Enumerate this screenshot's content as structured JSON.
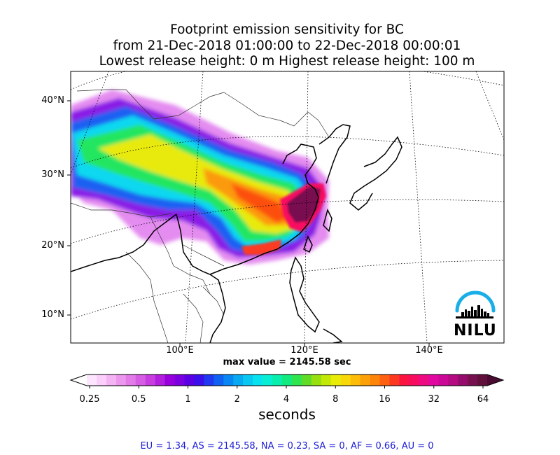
{
  "title": {
    "line1": "Footprint emission sensitivity for BC",
    "line2": "from 21-Dec-2018 01:00:00 to 22-Dec-2018 00:00:01",
    "line3": "Lowest release height: 0 m      Highest release height: 100 m"
  },
  "map": {
    "lat_labels": [
      "40°N",
      "30°N",
      "20°N",
      "10°N"
    ],
    "lon_labels": [
      "100°E",
      "120°E",
      "140°E"
    ],
    "max_value": "max value = 2145.58 sec",
    "logo_text": "NILU"
  },
  "colorbar": {
    "ticks": [
      "0.25",
      "0.5",
      "1",
      "2",
      "4",
      "8",
      "16",
      "32",
      "64"
    ],
    "unit": "seconds",
    "colors": [
      "#fde6fd",
      "#fad0fa",
      "#f4b4f4",
      "#eb97ee",
      "#e27ae8",
      "#d65de3",
      "#c83de0",
      "#b21edd",
      "#9700dc",
      "#7a00e0",
      "#5a00e4",
      "#3a10ea",
      "#2038f0",
      "#1060f2",
      "#0a86f2",
      "#08a8f2",
      "#08c8f2",
      "#08e2ee",
      "#08eed2",
      "#08eeac",
      "#12ea80",
      "#30e450",
      "#60dc28",
      "#96e010",
      "#c2e808",
      "#e8ec08",
      "#f8d808",
      "#fcbc08",
      "#fca008",
      "#fc8408",
      "#fc6010",
      "#fc3820",
      "#fc1440",
      "#f80c60",
      "#ee0a80",
      "#e008a0",
      "#cc0896",
      "#b40a82",
      "#960c6c",
      "#781050",
      "#60103a"
    ]
  },
  "footer": "EU = 1.34,  AS = 2145.58,  NA = 0.23,  SA = 0,  AF = 0.66,  AU = 0"
}
